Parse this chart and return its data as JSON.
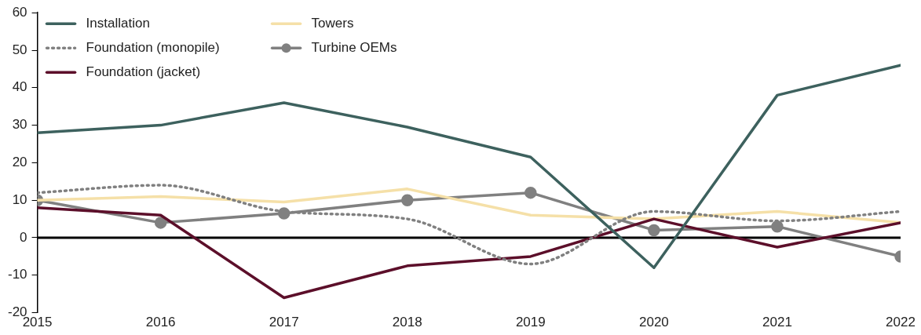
{
  "chart_data": {
    "type": "line",
    "x": [
      2015,
      2016,
      2017,
      2018,
      2019,
      2020,
      2021,
      2022
    ],
    "series": [
      {
        "name": "Installation",
        "color": "#3d615e",
        "values": [
          28,
          30,
          36,
          29.5,
          21.5,
          -8,
          38,
          46
        ]
      },
      {
        "name": "Foundation (monopile)",
        "color": "#808080",
        "line_style": "dotted",
        "values": [
          12,
          14,
          7,
          5,
          -7,
          7,
          4.5,
          7
        ]
      },
      {
        "name": "Foundation (jacket)",
        "color": "#5c0f2a",
        "values": [
          8,
          6,
          -16,
          -7.5,
          -5,
          5,
          -2.5,
          4
        ]
      },
      {
        "name": "Towers",
        "color": "#f5e0a8",
        "values": [
          10,
          11,
          9.5,
          13,
          6,
          5,
          7,
          4
        ]
      },
      {
        "name": "Turbine OEMs",
        "color": "#808080",
        "marker": "circle",
        "values": [
          10,
          4,
          6.5,
          10,
          12,
          2,
          3,
          -5
        ]
      }
    ],
    "xlim": [
      2015,
      2022
    ],
    "xticks": [
      2015,
      2016,
      2017,
      2018,
      2019,
      2020,
      2021,
      2022
    ],
    "ylim": [
      -20,
      60
    ],
    "yticks": [
      -20,
      -10,
      0,
      10,
      20,
      30,
      40,
      50,
      60
    ],
    "ref_lines": [
      {
        "axis": "y",
        "value": 0,
        "color": "#000000"
      }
    ],
    "grid": false,
    "legend": "top left",
    "marker": "none",
    "line_style": "solid"
  }
}
